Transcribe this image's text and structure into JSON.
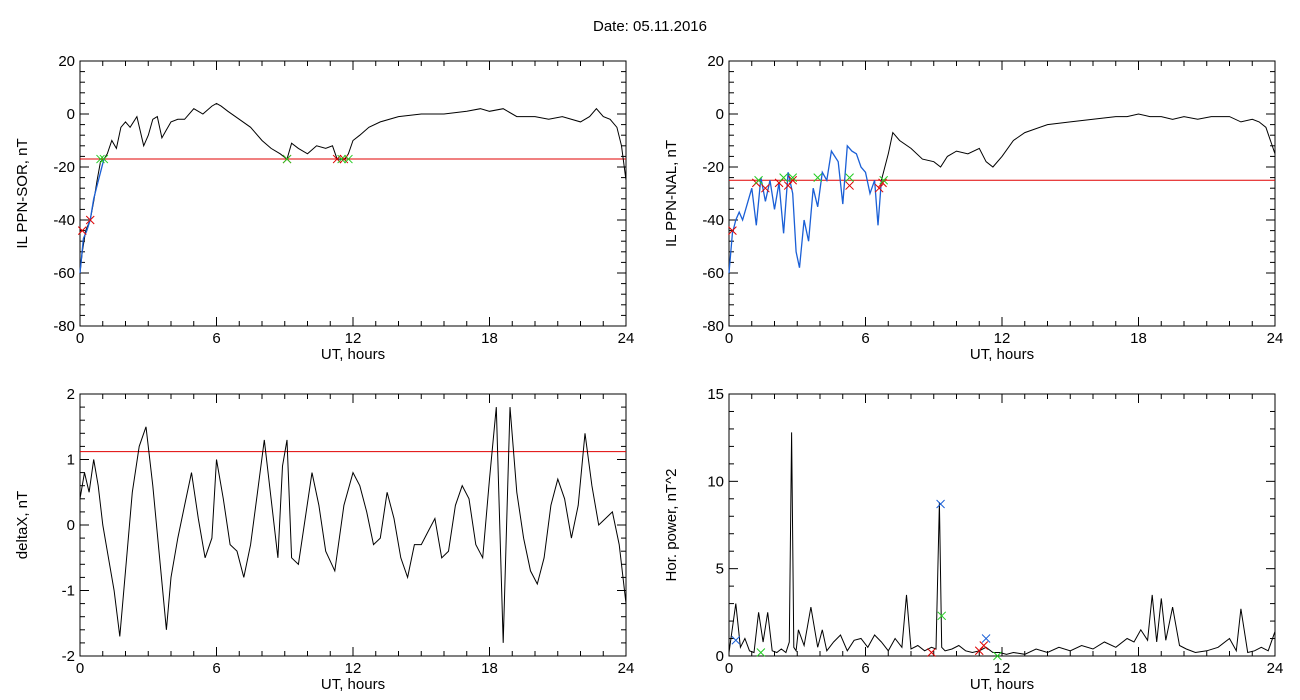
{
  "header": {
    "date_text": "Date:  05.11.2016"
  },
  "colors": {
    "axis": "#000000",
    "series_black": "#000000",
    "series_blue": "#1a5fd6",
    "threshold_red": "#e00000",
    "marker_green": "#22cc22",
    "marker_red": "#dd0000",
    "marker_blue": "#1a5fd6"
  },
  "chart_data": [
    {
      "type": "line",
      "ylabel": "IL PPN-SOR, nT",
      "xlabel": "UT, hours",
      "xlim": [
        0,
        24
      ],
      "ylim": [
        -80,
        20
      ],
      "xticks": [
        0,
        6,
        12,
        18,
        24
      ],
      "yticks": [
        -80,
        -60,
        -40,
        -20,
        0,
        20
      ],
      "threshold": -17,
      "series": [
        {
          "color": "black",
          "x": [
            0,
            0.1,
            0.25,
            0.45,
            0.6,
            0.75,
            0.9,
            1.05,
            1.2,
            1.4,
            1.6,
            1.8,
            2.0,
            2.2,
            2.5,
            2.8,
            3.0,
            3.2,
            3.4,
            3.6,
            3.8,
            4.0,
            4.3,
            4.6,
            5.0,
            5.4,
            5.8,
            6.0,
            6.2,
            6.5,
            7.0,
            7.5,
            8.0,
            8.4,
            8.8,
            9.1,
            9.3,
            9.6,
            10.0,
            10.4,
            10.8,
            11.1,
            11.3,
            11.5,
            11.65,
            11.8,
            12.0,
            12.3,
            12.7,
            13.2,
            14,
            15,
            16,
            17,
            17.6,
            18,
            18.6,
            19.2,
            20,
            20.6,
            21.2,
            22,
            22.4,
            22.7,
            23,
            23.3,
            23.6,
            23.8,
            24
          ],
          "y": [
            -60,
            -52,
            -44,
            -40,
            -33,
            -25,
            -18,
            -17,
            -15,
            -10,
            -13,
            -5,
            -3,
            -5,
            -1,
            -12,
            -8,
            -2,
            -1,
            -9,
            -6,
            -3,
            -2,
            -2,
            2,
            0,
            3,
            4,
            3,
            1,
            -2,
            -5,
            -10,
            -13,
            -15,
            -17,
            -11,
            -13,
            -15,
            -12,
            -13,
            -12,
            -17,
            -17,
            -17,
            -15,
            -10,
            -8,
            -5,
            -3,
            -1,
            0,
            0,
            1,
            2,
            1,
            2,
            -1,
            -1,
            -2,
            -1,
            -3,
            -1,
            2,
            -1,
            -2,
            -5,
            -12,
            -25
          ]
        },
        {
          "color": "blue",
          "x": [
            0,
            0.15,
            0.3,
            0.45,
            0.6,
            0.75,
            0.9,
            1.05
          ],
          "y": [
            -60,
            -47,
            -44,
            -40,
            -32,
            -27,
            -22,
            -17
          ]
        }
      ],
      "markers_red": [
        {
          "x": 0.1,
          "y": -44
        },
        {
          "x": 0.45,
          "y": -40
        },
        {
          "x": 9.1,
          "y": -17
        },
        {
          "x": 11.3,
          "y": -17
        },
        {
          "x": 11.6,
          "y": -17
        }
      ],
      "markers_green": [
        {
          "x": 0.9,
          "y": -17
        },
        {
          "x": 1.05,
          "y": -17
        },
        {
          "x": 9.1,
          "y": -17
        },
        {
          "x": 11.5,
          "y": -17
        },
        {
          "x": 11.8,
          "y": -17
        }
      ],
      "markers_blue": []
    },
    {
      "type": "line",
      "ylabel": "IL PPN-NAL, nT",
      "xlabel": "UT, hours",
      "xlim": [
        0,
        24
      ],
      "ylim": [
        -80,
        20
      ],
      "xticks": [
        0,
        6,
        12,
        18,
        24
      ],
      "yticks": [
        -80,
        -60,
        -40,
        -20,
        0,
        20
      ],
      "threshold": -25,
      "series": [
        {
          "color": "black",
          "x": [
            6.7,
            7.0,
            7.2,
            7.5,
            8.0,
            8.5,
            9.0,
            9.3,
            9.6,
            10.0,
            10.5,
            11.0,
            11.3,
            11.6,
            12.0,
            12.5,
            13,
            14,
            15,
            16,
            17,
            17.5,
            18,
            18.5,
            19,
            19.5,
            20,
            20.6,
            21.2,
            22,
            22.5,
            23,
            23.3,
            23.6,
            24
          ],
          "y": [
            -25,
            -15,
            -7,
            -10,
            -13,
            -17,
            -18,
            -20,
            -16,
            -14,
            -15,
            -13,
            -18,
            -20,
            -16,
            -10,
            -7,
            -4,
            -3,
            -2,
            -1,
            -1,
            0,
            -1,
            -1,
            -2,
            -1,
            -2,
            -1,
            -1,
            -3,
            -2,
            -3,
            -5,
            -15
          ]
        },
        {
          "color": "blue",
          "x": [
            0,
            0.15,
            0.3,
            0.45,
            0.6,
            0.8,
            1.0,
            1.2,
            1.4,
            1.6,
            1.8,
            2.0,
            2.2,
            2.4,
            2.6,
            2.8,
            2.95,
            3.1,
            3.3,
            3.5,
            3.7,
            3.9,
            4.1,
            4.3,
            4.5,
            4.8,
            5.0,
            5.2,
            5.4,
            5.6,
            5.8,
            6.0,
            6.2,
            6.4,
            6.55,
            6.7
          ],
          "y": [
            -60,
            -45,
            -40,
            -37,
            -40,
            -34,
            -28,
            -42,
            -24,
            -33,
            -25,
            -36,
            -26,
            -45,
            -22,
            -30,
            -52,
            -58,
            -40,
            -48,
            -28,
            -35,
            -22,
            -25,
            -14,
            -18,
            -34,
            -12,
            -14,
            -15,
            -20,
            -22,
            -30,
            -25,
            -42,
            -25
          ]
        }
      ],
      "markers_red": [
        {
          "x": 0.15,
          "y": -44
        },
        {
          "x": 1.2,
          "y": -26
        },
        {
          "x": 1.6,
          "y": -28
        },
        {
          "x": 2.2,
          "y": -26
        },
        {
          "x": 2.6,
          "y": -27
        },
        {
          "x": 2.8,
          "y": -25
        },
        {
          "x": 5.3,
          "y": -27
        },
        {
          "x": 6.6,
          "y": -28
        },
        {
          "x": 6.75,
          "y": -26
        }
      ],
      "markers_green": [
        {
          "x": 1.3,
          "y": -25
        },
        {
          "x": 2.4,
          "y": -24
        },
        {
          "x": 2.8,
          "y": -24
        },
        {
          "x": 3.9,
          "y": -24
        },
        {
          "x": 5.3,
          "y": -24
        },
        {
          "x": 6.8,
          "y": -25
        }
      ],
      "markers_blue": []
    },
    {
      "type": "line",
      "ylabel": "deltaX, nT",
      "xlabel": "UT, hours",
      "xlim": [
        0,
        24
      ],
      "ylim": [
        -2,
        2
      ],
      "xticks": [
        0,
        6,
        12,
        18,
        24
      ],
      "yticks": [
        -2,
        -1,
        0,
        1,
        2
      ],
      "threshold": 1.12,
      "series": [
        {
          "color": "black",
          "x": [
            0,
            0.2,
            0.4,
            0.6,
            0.8,
            1.0,
            1.2,
            1.5,
            1.75,
            2.0,
            2.3,
            2.6,
            2.9,
            3.2,
            3.5,
            3.8,
            4.0,
            4.3,
            4.6,
            4.9,
            5.2,
            5.5,
            5.8,
            6.0,
            6.3,
            6.6,
            6.9,
            7.2,
            7.5,
            7.8,
            8.1,
            8.4,
            8.7,
            8.9,
            9.1,
            9.3,
            9.6,
            9.9,
            10.2,
            10.5,
            10.8,
            11.2,
            11.6,
            12.0,
            12.3,
            12.6,
            12.9,
            13.2,
            13.5,
            13.8,
            14.1,
            14.4,
            14.7,
            15.0,
            15.3,
            15.6,
            15.9,
            16.2,
            16.5,
            16.8,
            17.1,
            17.4,
            17.7,
            18.0,
            18.3,
            18.6,
            18.9,
            19.2,
            19.5,
            19.8,
            20.1,
            20.4,
            20.7,
            21.0,
            21.3,
            21.6,
            21.9,
            22.2,
            22.5,
            22.8,
            23.1,
            23.4,
            23.7,
            24
          ],
          "y": [
            0.4,
            0.8,
            0.5,
            1.0,
            0.6,
            0.0,
            -0.4,
            -1.0,
            -1.7,
            -0.7,
            0.5,
            1.2,
            1.5,
            0.6,
            -0.5,
            -1.6,
            -0.8,
            -0.2,
            0.3,
            0.8,
            0.1,
            -0.5,
            -0.2,
            1.0,
            0.4,
            -0.3,
            -0.4,
            -0.8,
            -0.3,
            0.5,
            1.3,
            0.4,
            -0.5,
            0.9,
            1.3,
            -0.5,
            -0.6,
            0.1,
            0.8,
            0.3,
            -0.4,
            -0.7,
            0.3,
            0.8,
            0.6,
            0.2,
            -0.3,
            -0.2,
            0.5,
            0.1,
            -0.5,
            -0.8,
            -0.3,
            -0.3,
            -0.1,
            0.1,
            -0.5,
            -0.4,
            0.3,
            0.6,
            0.4,
            -0.3,
            -0.5,
            0.7,
            1.8,
            -1.8,
            1.8,
            0.5,
            -0.2,
            -0.7,
            -0.9,
            -0.5,
            0.3,
            0.7,
            0.4,
            -0.2,
            0.3,
            1.4,
            0.6,
            0.0,
            0.1,
            0.2,
            -0.3,
            -1.2
          ]
        }
      ],
      "markers_red": [],
      "markers_green": [],
      "markers_blue": []
    },
    {
      "type": "line",
      "ylabel": "Hor. power, nT^2",
      "xlabel": "UT, hours",
      "xlim": [
        0,
        24
      ],
      "ylim": [
        0,
        15
      ],
      "xticks": [
        0,
        6,
        12,
        18,
        24
      ],
      "yticks": [
        0,
        5,
        10,
        15
      ],
      "threshold": null,
      "series": [
        {
          "color": "black",
          "x": [
            0,
            0.3,
            0.5,
            0.7,
            0.9,
            1.1,
            1.3,
            1.5,
            1.7,
            1.9,
            2.1,
            2.3,
            2.5,
            2.65,
            2.75,
            2.85,
            2.95,
            3.05,
            3.3,
            3.6,
            3.9,
            4.1,
            4.3,
            4.6,
            4.9,
            5.2,
            5.5,
            5.8,
            6.1,
            6.4,
            6.7,
            7.0,
            7.3,
            7.6,
            7.8,
            8.0,
            8.3,
            8.6,
            8.9,
            9.1,
            9.25,
            9.35,
            9.5,
            9.8,
            10.1,
            10.4,
            10.7,
            11.0,
            11.3,
            11.6,
            11.9,
            12.2,
            12.5,
            13,
            13.5,
            14,
            14.5,
            15,
            15.5,
            16,
            16.5,
            17,
            17.5,
            17.8,
            18.1,
            18.4,
            18.6,
            18.8,
            19.0,
            19.2,
            19.5,
            19.8,
            20.1,
            20.5,
            21,
            21.5,
            22,
            22.3,
            22.5,
            22.8,
            23.1,
            23.4,
            23.7,
            24
          ],
          "y": [
            0.2,
            3.0,
            0.5,
            1.0,
            0.3,
            0.2,
            2.5,
            0.8,
            2.5,
            0.3,
            0.2,
            0.4,
            0.2,
            0.8,
            12.8,
            0.5,
            0.3,
            1.5,
            0.6,
            2.8,
            0.5,
            1.5,
            0.3,
            0.8,
            1.2,
            0.3,
            0.9,
            1.0,
            0.5,
            1.2,
            0.8,
            0.3,
            1.0,
            0.5,
            3.5,
            0.4,
            0.6,
            0.3,
            0.5,
            0.4,
            8.8,
            0.5,
            0.3,
            0.4,
            0.6,
            0.3,
            0.2,
            0.3,
            0.5,
            0.2,
            0.2,
            0.1,
            0.2,
            0.1,
            0.4,
            0.2,
            0.5,
            0.3,
            0.6,
            0.4,
            0.8,
            0.5,
            1.0,
            0.8,
            1.5,
            0.9,
            3.5,
            0.8,
            3.3,
            0.9,
            2.8,
            0.6,
            0.4,
            0.2,
            0.3,
            0.5,
            1.0,
            0.3,
            2.7,
            0.2,
            0.3,
            0.5,
            0.3,
            1.4
          ]
        }
      ],
      "markers_red": [
        {
          "x": 8.9,
          "y": 0.2
        },
        {
          "x": 11.0,
          "y": 0.3
        },
        {
          "x": 11.2,
          "y": 0.6
        }
      ],
      "markers_green": [
        {
          "x": 1.4,
          "y": 0.2
        },
        {
          "x": 9.35,
          "y": 2.3
        },
        {
          "x": 11.8,
          "y": 0.0
        }
      ],
      "markers_blue": [
        {
          "x": 0.3,
          "y": 0.9
        },
        {
          "x": 9.3,
          "y": 8.7
        },
        {
          "x": 11.3,
          "y": 1.0
        }
      ]
    }
  ]
}
